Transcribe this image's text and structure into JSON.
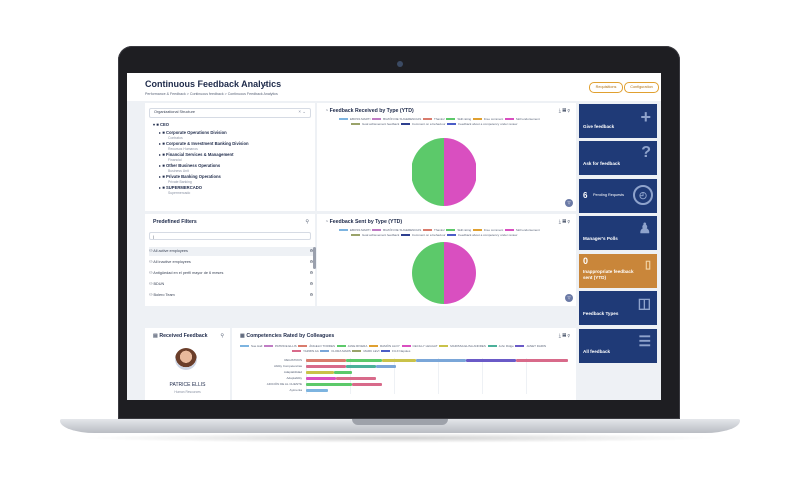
{
  "app": {
    "title": "Continuous Feedback Analytics",
    "breadcrumb": "Performance & Feedback > Continuous feedback > Continuous Feedback Analytics",
    "buttons": {
      "requisitions": "Requisitions",
      "configuration": "Configuration"
    }
  },
  "org": {
    "select_value": "Organizational Structure",
    "root": "CEO",
    "items": [
      {
        "label": "Corporate Operations Division",
        "sub": "Contratos"
      },
      {
        "label": "Corporate & Investment Banking Division",
        "sub": "Recursos Humanos"
      },
      {
        "label": "Financial Services & Management",
        "sub": "Financial"
      },
      {
        "label": "Other Business Operations",
        "sub": "Business Unit"
      },
      {
        "label": "Private Banking Operations",
        "sub": "Private Banking"
      },
      {
        "label": "SUPERMERCADO",
        "sub": "Supermercado"
      }
    ]
  },
  "received_by_type": {
    "title": "Feedback Received by Type (YTD)",
    "legend": [
      "EBOSS MARTI",
      "BUZÓN DE SUGERENCIAS",
      "Thanks!",
      "Skill rating",
      "Free comment",
      "Skill endorsement",
      "Goal achievement feedback",
      "Comment on a behaviour",
      "Feedback about a competency under review"
    ]
  },
  "sent_by_type": {
    "title": "Feedback Sent by Type (YTD)",
    "legend": [
      "EBOSS MARTI",
      "BUZÓN DE SUGERENCIAS",
      "Thanks!",
      "Skill rating",
      "Free comment",
      "Skill endorsement",
      "Goal achievement feedback",
      "Comment on a behaviour",
      "Feedback about a competency under review"
    ]
  },
  "filters": {
    "title": "Predefined Filters",
    "search_value": "|",
    "items": [
      "All active employees",
      "All inactive employees",
      "Antigüedad en el perfil mayor de 6 meses",
      "BDUN",
      "Bolero Team"
    ]
  },
  "received_feedback": {
    "title": "Received Feedback",
    "person_name": "PATRICE ELLIS",
    "person_role": "Human Resources"
  },
  "competencies": {
    "title": "Competencies Rated by Colleagues",
    "legend": [
      "Sue Hall",
      "PATRICE ELLIS",
      "ÁNGELO TORRES",
      "JANE RIVERA",
      "RAMÓN ALOY",
      "CECILLY LEGGAT",
      "MARISSA ELISA ANDRES",
      "John Ridge",
      "JANET DARIN",
      "YAZMIN AA",
      "FLORA MARS",
      "MARK LEVI",
      "FUJI Napoles"
    ],
    "rows": [
      "REGISTROS",
      "Ability Competencias",
      "Adaptabilidad",
      "Adaptability",
      "ADICIÓN DE AL CLIENTE",
      "Ayimenta"
    ]
  },
  "tiles": [
    {
      "label": "Give feedback",
      "icon": "plus-icon"
    },
    {
      "label": "Ask for feedback",
      "icon": "question-icon"
    },
    {
      "label": "Pending Requests",
      "count": "6",
      "icon": "clock-icon"
    },
    {
      "label": "Manager's Polls",
      "icon": "poll-icon"
    },
    {
      "count": "0",
      "label": "Inappropriate feedback sent (YTD)",
      "icon": "warning-icon"
    },
    {
      "label": "Feedback Types",
      "icon": "types-icon"
    },
    {
      "label": "All feedback",
      "icon": "list-icon"
    }
  ],
  "colors": {
    "accent_orange": "#e0a030",
    "tile_blue": "#1f3a77",
    "pie_green": "#5cc96a",
    "pie_magenta": "#d94fc0"
  }
}
